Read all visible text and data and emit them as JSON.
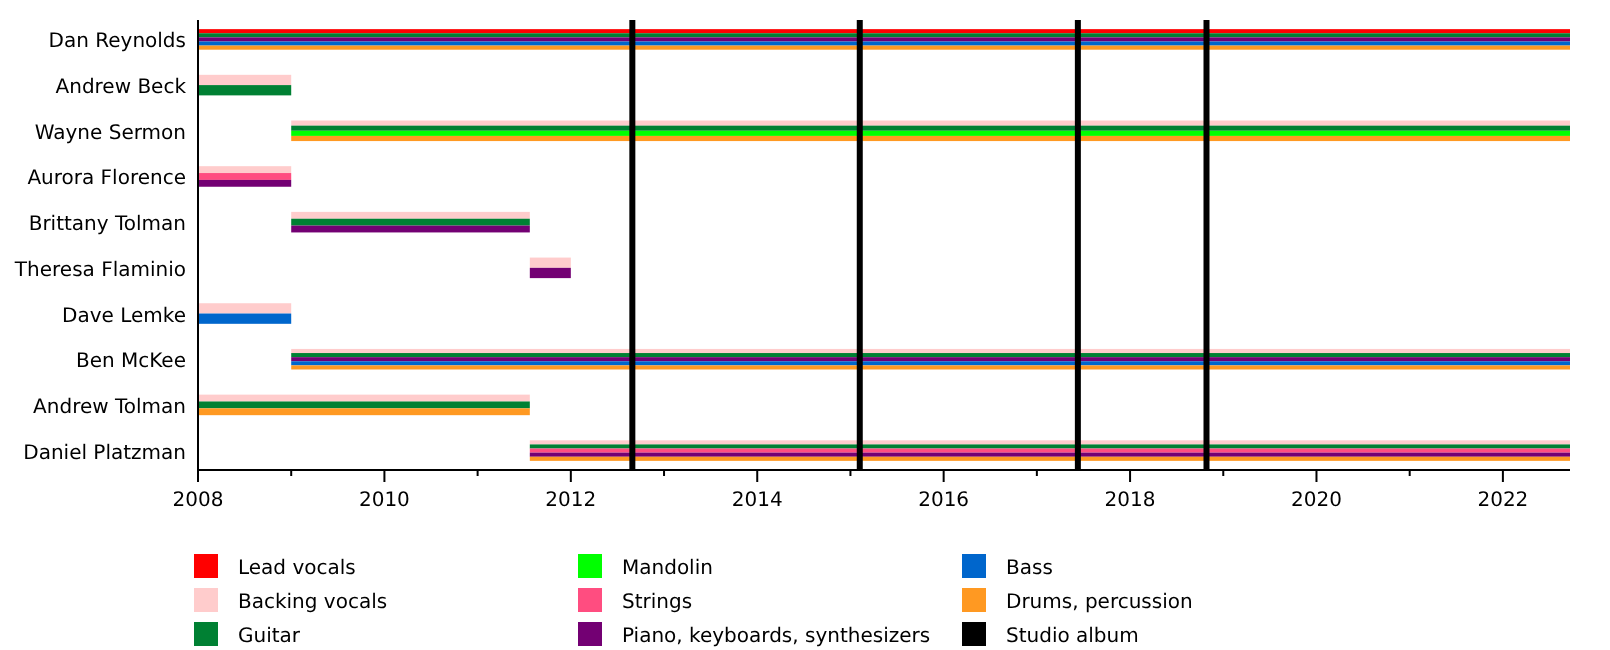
{
  "chart_data": {
    "type": "bar",
    "orientation": "horizontal",
    "categories": [
      "Dan Reynolds",
      "Andrew Beck",
      "Wayne Sermon",
      "Aurora Florence",
      "Brittany Tolman",
      "Theresa Flaminio",
      "Dave Lemke",
      "Ben McKee",
      "Andrew Tolman",
      "Daniel Platzman"
    ],
    "series": [
      {
        "name": "Lead vocals",
        "color": "#ff0000",
        "base": [
          2008,
          null,
          null,
          null,
          null,
          null,
          null,
          null,
          null,
          null
        ],
        "values": [
          14.72,
          null,
          null,
          null,
          null,
          null,
          null,
          null,
          null,
          null
        ]
      },
      {
        "name": "Backing vocals",
        "color": "#ffcccc",
        "base": [
          null,
          2008,
          2009,
          2008,
          2009,
          2011.56,
          2008,
          2009,
          2008,
          2011.56
        ],
        "values": [
          null,
          1,
          13.72,
          1,
          2.56,
          0.44,
          1,
          13.72,
          3.56,
          11.16
        ]
      },
      {
        "name": "Guitar",
        "color": "#008033",
        "base": [
          2008,
          2008,
          2009,
          null,
          2009,
          null,
          null,
          2009,
          2008,
          2011.56
        ],
        "values": [
          14.72,
          1,
          13.72,
          null,
          2.56,
          null,
          null,
          13.72,
          3.56,
          11.16
        ]
      },
      {
        "name": "Mandolin",
        "color": "#00ff00",
        "base": [
          null,
          null,
          2009,
          null,
          null,
          null,
          null,
          null,
          null,
          null
        ],
        "values": [
          null,
          null,
          13.72,
          null,
          null,
          null,
          null,
          null,
          null,
          null
        ]
      },
      {
        "name": "Strings",
        "color": "#ff4d80",
        "base": [
          null,
          null,
          null,
          2008,
          null,
          null,
          null,
          null,
          null,
          2011.56
        ],
        "values": [
          null,
          null,
          null,
          1,
          null,
          null,
          null,
          null,
          null,
          11.16
        ]
      },
      {
        "name": "Piano, keyboards, synthesizers",
        "color": "#730073",
        "base": [
          2008,
          null,
          null,
          2008,
          2009,
          2011.56,
          null,
          2009,
          null,
          2011.56
        ],
        "values": [
          14.72,
          null,
          null,
          1,
          2.56,
          0.44,
          null,
          13.72,
          null,
          11.16
        ]
      },
      {
        "name": "Bass",
        "color": "#0066cc",
        "base": [
          2008,
          null,
          null,
          null,
          null,
          null,
          2008,
          2009,
          null,
          null
        ],
        "values": [
          14.72,
          null,
          null,
          null,
          null,
          null,
          1,
          13.72,
          null,
          null
        ]
      },
      {
        "name": "Drums, percussion",
        "color": "#ff9922",
        "base": [
          2008,
          null,
          2009,
          null,
          null,
          null,
          null,
          2009,
          2008,
          2011.56
        ],
        "values": [
          14.72,
          null,
          13.72,
          null,
          null,
          null,
          null,
          13.72,
          3.56,
          11.16
        ]
      }
    ],
    "xlim": [
      2008,
      2022.72
    ],
    "xticks": [
      2008,
      {
        "value": 2009,
        "label": null
      },
      2010,
      {
        "value": 2011,
        "label": null
      },
      2012,
      {
        "value": 2013,
        "label": null
      },
      2014,
      {
        "value": 2015,
        "label": null
      },
      2016,
      {
        "value": 2017,
        "label": null
      },
      2018,
      {
        "value": 2019,
        "label": null
      },
      2020,
      {
        "value": 2021,
        "label": null
      },
      2022
    ],
    "ref_lines": [
      {
        "axis": "x",
        "value": 2012.66,
        "label": "Studio album",
        "color": "#000000"
      },
      {
        "axis": "x",
        "value": 2015.1,
        "color": "#000000"
      },
      {
        "axis": "x",
        "value": 2017.44,
        "color": "#000000"
      },
      {
        "axis": "x",
        "value": 2018.82,
        "color": "#000000"
      }
    ],
    "legend": "bottom",
    "grid": false
  }
}
